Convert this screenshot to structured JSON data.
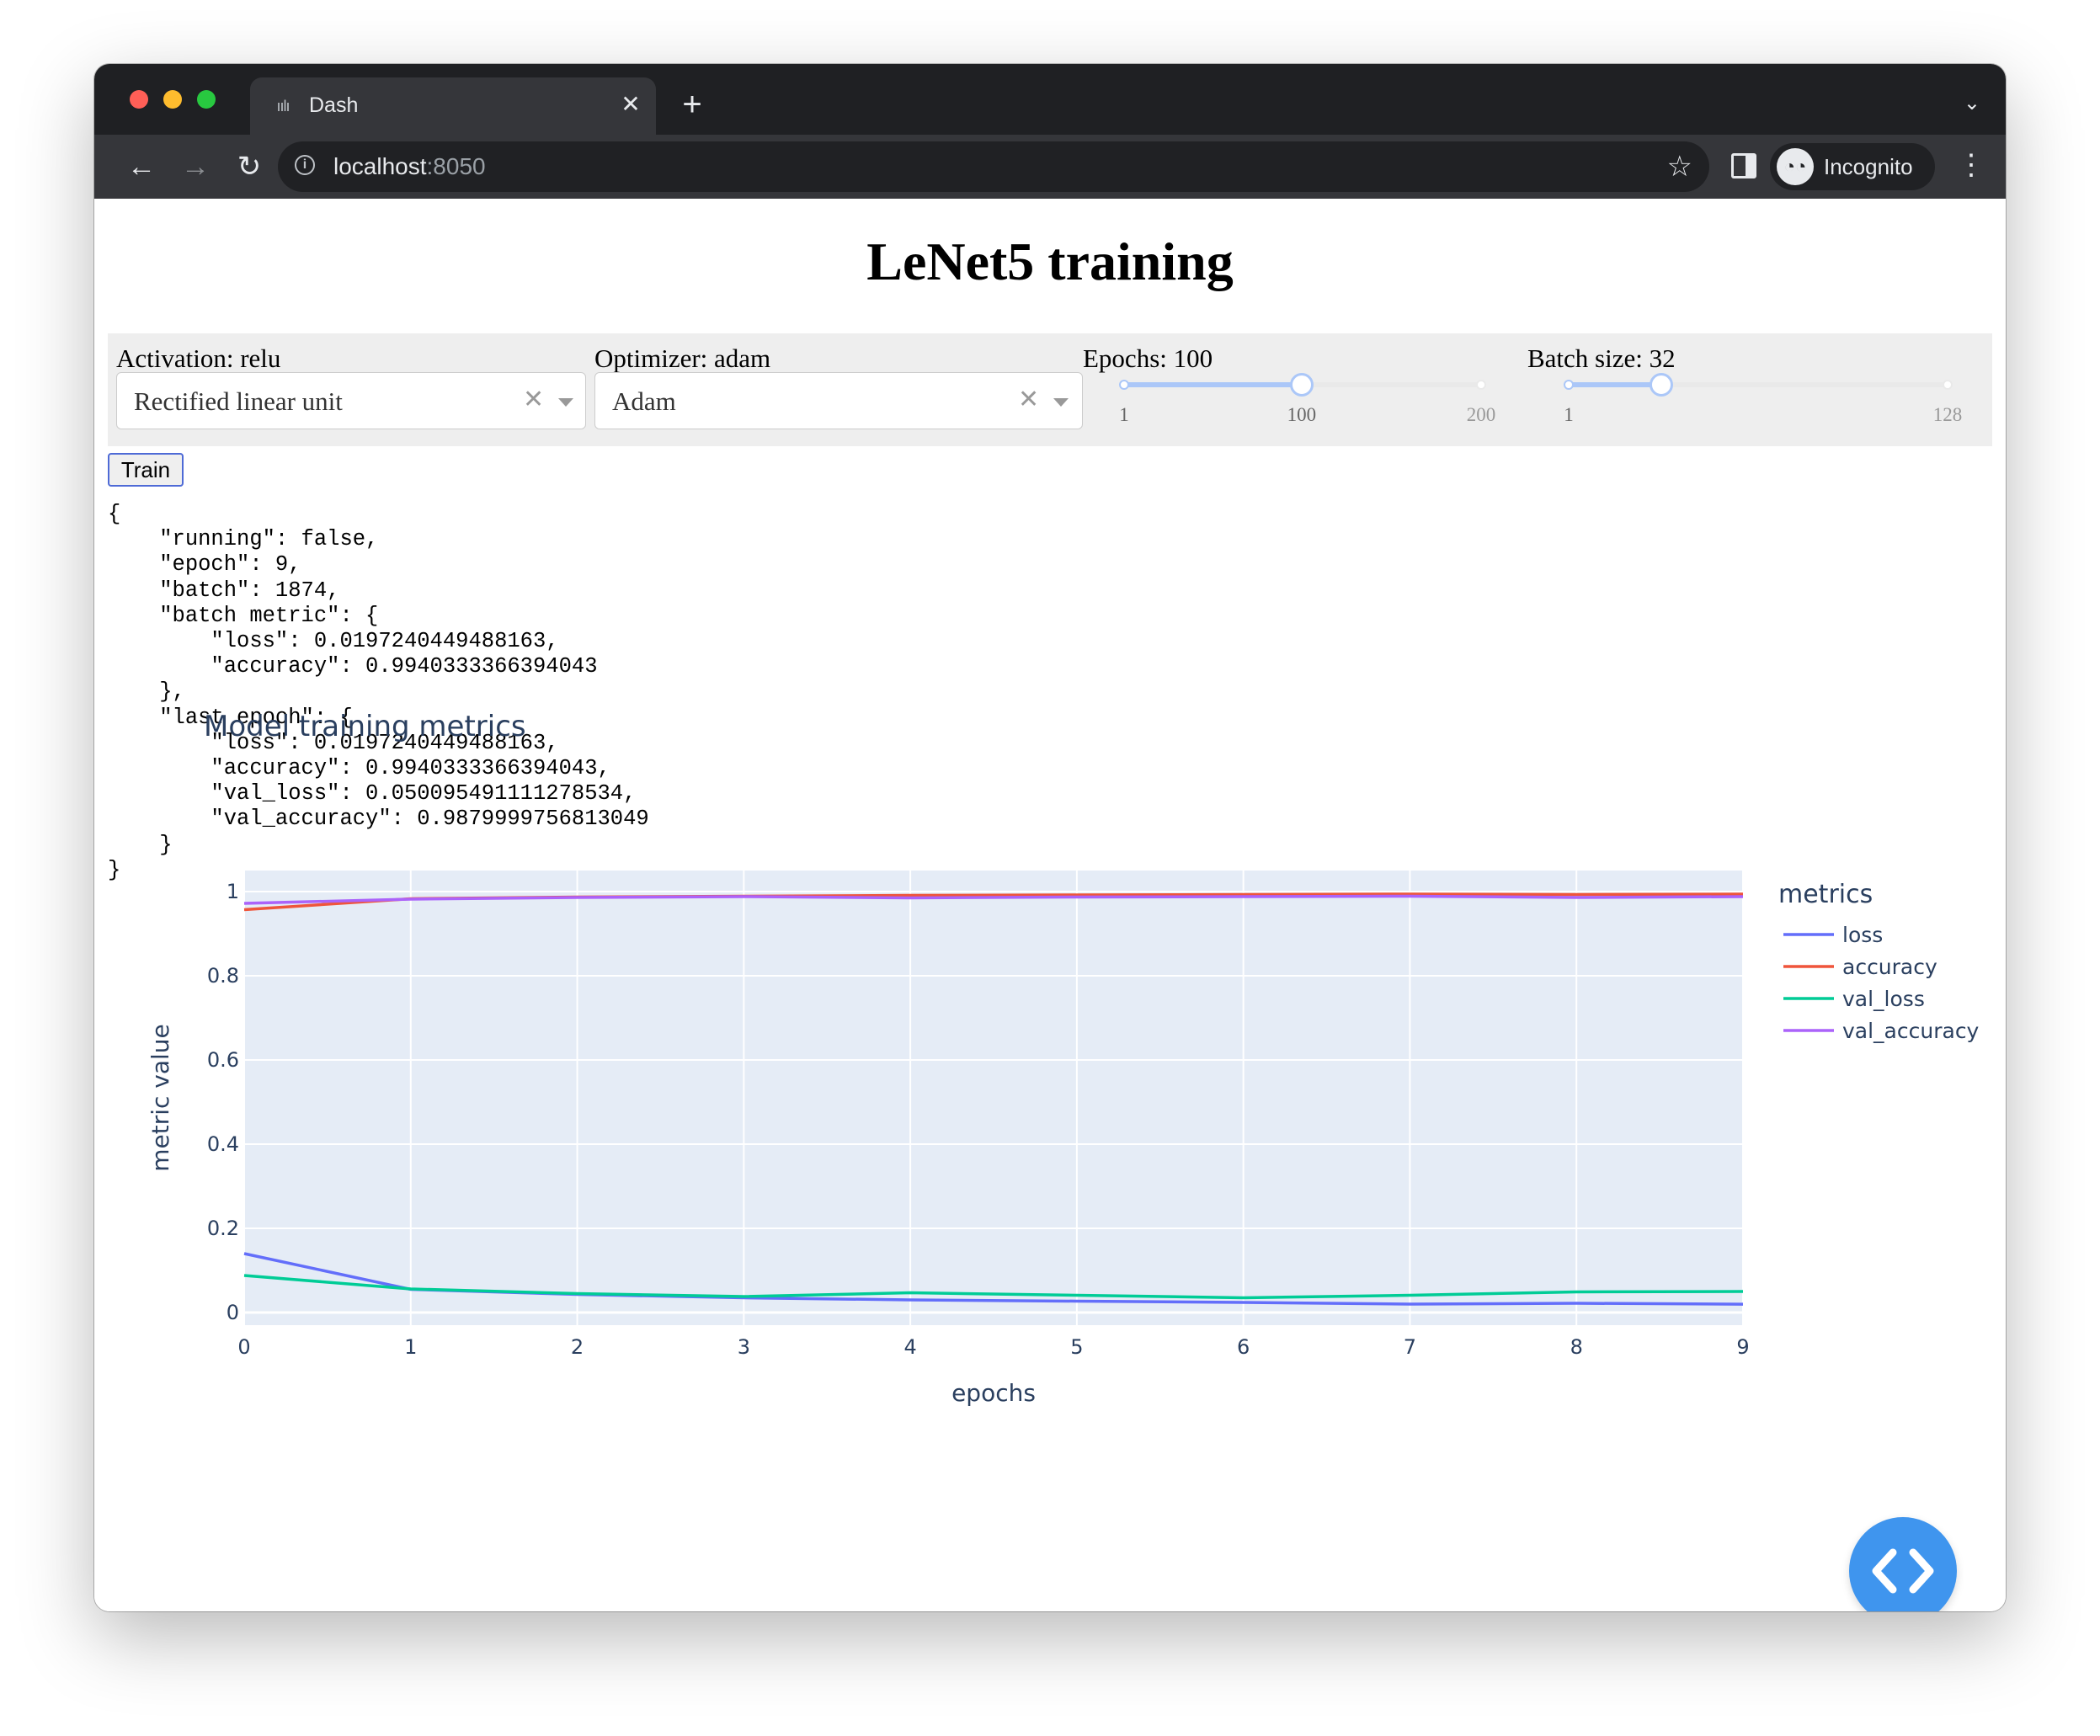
{
  "browser": {
    "tab_title": "Dash",
    "tab_favicon": "bar-chart-icon",
    "url_host": "localhost",
    "url_port": ":8050",
    "profile_label": "Incognito"
  },
  "page": {
    "title": "LeNet5 training",
    "activation": {
      "label": "Activation: relu",
      "value": "Rectified linear unit"
    },
    "optimizer": {
      "label": "Optimizer: adam",
      "value": "Adam"
    },
    "epochs": {
      "label": "Epochs: 100",
      "min": 1,
      "max": 200,
      "value": 100,
      "marks": [
        "1",
        "100",
        "200"
      ]
    },
    "batch_size": {
      "label": "Batch size: 32",
      "min": 1,
      "max": 128,
      "value": 32,
      "marks": [
        "1",
        "128"
      ]
    },
    "train_label": "Train",
    "status_json": "{\n    \"running\": false,\n    \"epoch\": 9,\n    \"batch\": 1874,\n    \"batch metric\": {\n        \"loss\": 0.0197240449488163,\n        \"accuracy\": 0.9940333366394043\n    },\n    \"last epoch\": {\n        \"loss\": 0.0197240449488163,\n        \"accuracy\": 0.9940333366394043,\n        \"val_loss\": 0.050095491111278534,\n        \"val_accuracy\": 0.9879999756813049\n    }\n}"
  },
  "chart_data": {
    "type": "line",
    "title": "Model training metrics",
    "xlabel": "epochs",
    "ylabel": "metric value",
    "legend_title": "metrics",
    "legend_position": "right",
    "grid": true,
    "xlim": [
      0,
      9
    ],
    "ylim": [
      -0.03,
      1.05
    ],
    "x_ticks": [
      0,
      1,
      2,
      3,
      4,
      5,
      6,
      7,
      8,
      9
    ],
    "y_ticks": [
      0,
      0.2,
      0.4,
      0.6,
      0.8,
      1
    ],
    "x": [
      0,
      1,
      2,
      3,
      4,
      5,
      6,
      7,
      8,
      9
    ],
    "series": [
      {
        "name": "loss",
        "color": "#636efa",
        "values": [
          0.14,
          0.055,
          0.043,
          0.035,
          0.03,
          0.027,
          0.024,
          0.02,
          0.022,
          0.0197
        ]
      },
      {
        "name": "accuracy",
        "color": "#ef553b",
        "values": [
          0.957,
          0.983,
          0.987,
          0.989,
          0.991,
          0.992,
          0.993,
          0.994,
          0.993,
          0.994
        ]
      },
      {
        "name": "val_loss",
        "color": "#00cc96",
        "values": [
          0.088,
          0.056,
          0.045,
          0.038,
          0.047,
          0.041,
          0.035,
          0.041,
          0.049,
          0.05
        ]
      },
      {
        "name": "val_accuracy",
        "color": "#ab63fa",
        "values": [
          0.972,
          0.982,
          0.986,
          0.988,
          0.985,
          0.987,
          0.988,
          0.989,
          0.986,
          0.988
        ]
      }
    ]
  }
}
